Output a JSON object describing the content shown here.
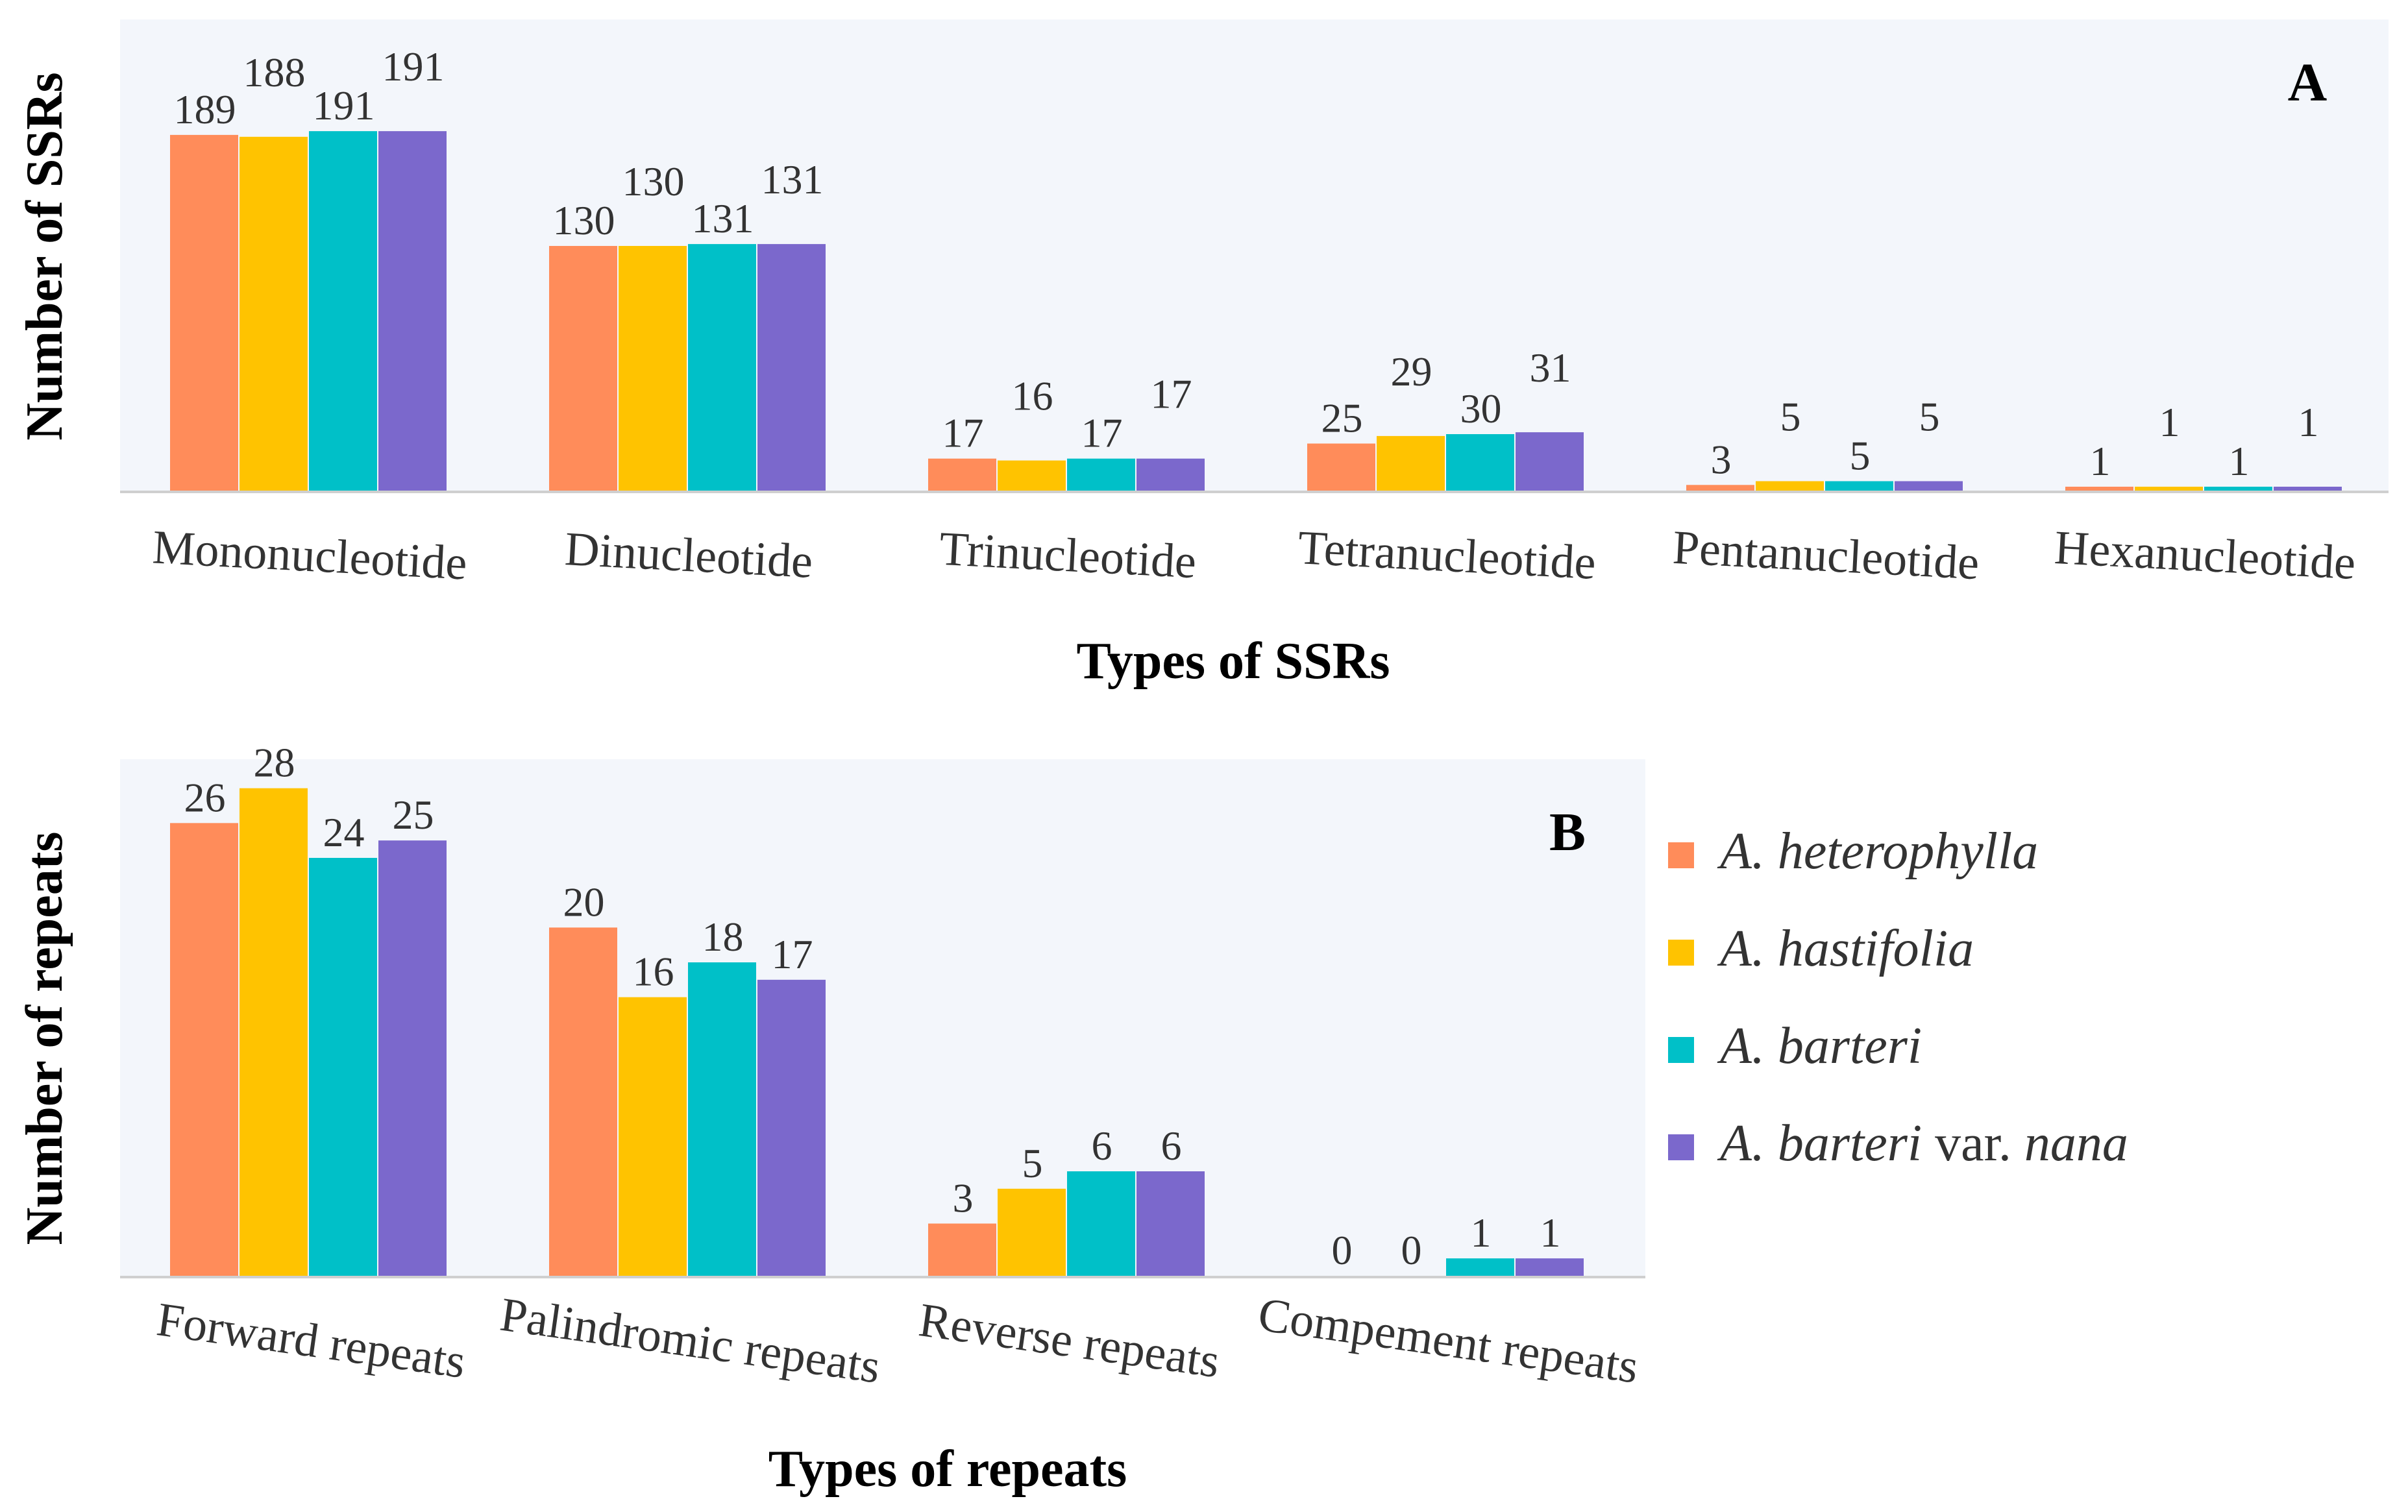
{
  "colors": [
    "#FF8C5A",
    "#FFC300",
    "#00C0C8",
    "#7B68CC"
  ],
  "legend": [
    {
      "name": "A. heterophylla",
      "italic": "A. heterophylla",
      "plain": ""
    },
    {
      "name": "A. hastifolia",
      "italic": "A. hastifolia",
      "plain": ""
    },
    {
      "name": "A. barteri",
      "italic": "A. barteri",
      "plain": ""
    },
    {
      "name": "A. barteri var. nana",
      "italic": "A. barteri",
      "plain": " var. ",
      "italic2": "nana"
    }
  ],
  "chart_data": [
    {
      "type": "bar",
      "panel": "A",
      "title": "",
      "xlabel": "Types of SSRs",
      "ylabel": "Number of SSRs",
      "ylim": [
        0,
        200
      ],
      "categories": [
        "Mononucleotide",
        "Dinucleotide",
        "Trinucleotide",
        "Tetranucleotide",
        "Pentanucleotide",
        "Hexanucleotide"
      ],
      "series": [
        {
          "name": "A. heterophylla",
          "values": [
            189,
            130,
            17,
            25,
            3,
            1
          ]
        },
        {
          "name": "A. hastifolia",
          "values": [
            188,
            130,
            16,
            29,
            5,
            1
          ]
        },
        {
          "name": "A. barteri",
          "values": [
            191,
            131,
            17,
            30,
            5,
            1
          ]
        },
        {
          "name": "A. barteri var. nana",
          "values": [
            191,
            131,
            17,
            31,
            5,
            1
          ]
        }
      ],
      "grid": false,
      "legend": "none"
    },
    {
      "type": "bar",
      "panel": "B",
      "title": "",
      "xlabel": "Types of repeats",
      "ylabel": "Number of repeats",
      "ylim": [
        0,
        30
      ],
      "categories": [
        "Forward repeats",
        "Palindromic repeats",
        "Reverse repeats",
        "Compement repeats"
      ],
      "series": [
        {
          "name": "A. heterophylla",
          "values": [
            26,
            20,
            3,
            0
          ]
        },
        {
          "name": "A. hastifolia",
          "values": [
            28,
            16,
            5,
            0
          ]
        },
        {
          "name": "A. barteri",
          "values": [
            24,
            18,
            6,
            1
          ]
        },
        {
          "name": "A. barteri var. nana",
          "values": [
            25,
            17,
            6,
            1
          ]
        }
      ],
      "grid": false,
      "legend": "right"
    }
  ]
}
